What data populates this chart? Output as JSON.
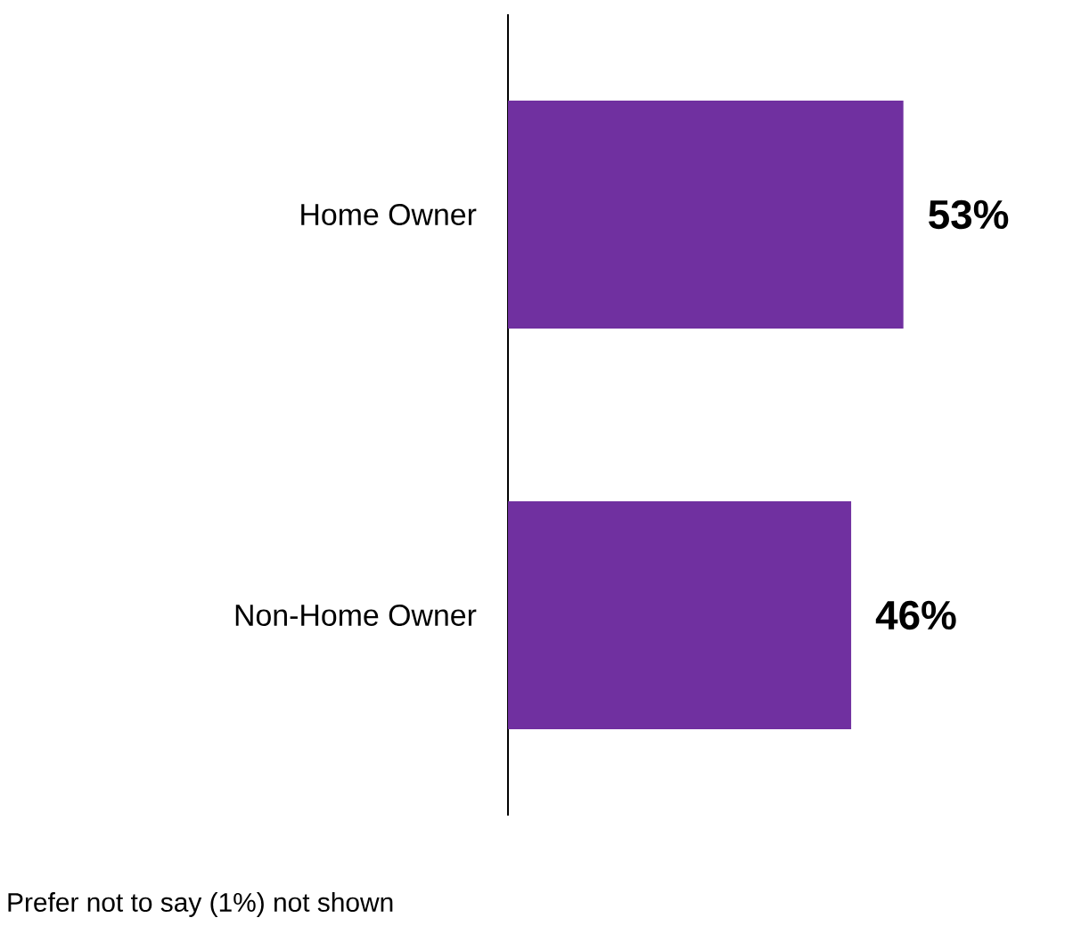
{
  "chart_data": {
    "type": "bar",
    "orientation": "horizontal",
    "categories": [
      "Home Owner",
      "Non-Home Owner"
    ],
    "values": [
      53,
      46
    ],
    "value_labels": [
      "53%",
      "46%"
    ],
    "color": "#7030a0",
    "annotations": [
      "Prefer not to say (1%) not shown"
    ]
  }
}
